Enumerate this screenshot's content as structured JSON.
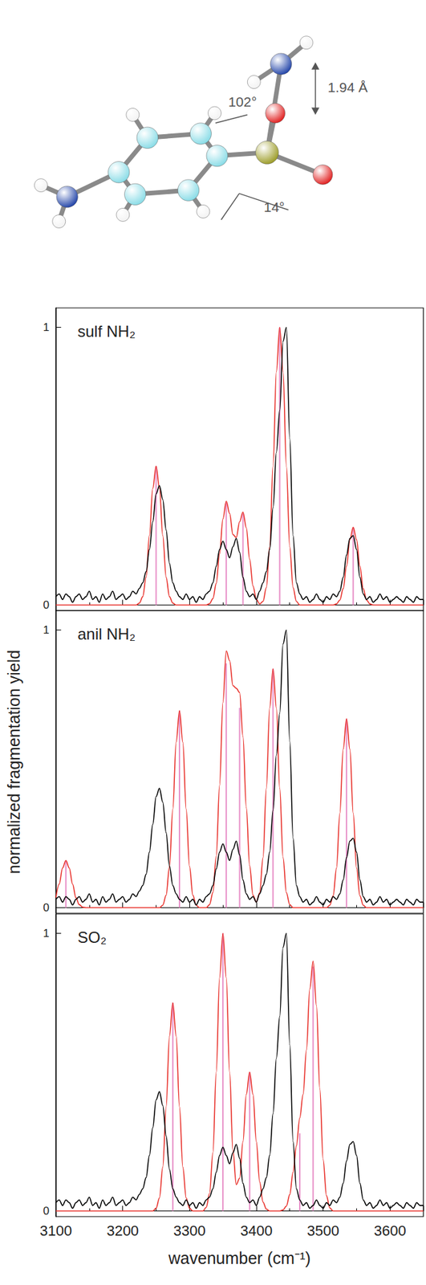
{
  "molecule": {
    "annotations": [
      "102°",
      "14°",
      "1.94 Å"
    ]
  },
  "chart_data": [
    {
      "type": "line",
      "title": "sulf NH₂",
      "x": [
        3100,
        3105,
        3110,
        3115,
        3120,
        3125,
        3130,
        3135,
        3140,
        3145,
        3150,
        3155,
        3160,
        3165,
        3170,
        3175,
        3180,
        3185,
        3190,
        3195,
        3200,
        3205,
        3210,
        3215,
        3220,
        3225,
        3230,
        3235,
        3240,
        3245,
        3250,
        3255,
        3260,
        3265,
        3270,
        3275,
        3280,
        3285,
        3290,
        3295,
        3300,
        3305,
        3310,
        3315,
        3320,
        3325,
        3330,
        3335,
        3340,
        3345,
        3350,
        3355,
        3360,
        3365,
        3370,
        3375,
        3380,
        3385,
        3390,
        3395,
        3400,
        3405,
        3410,
        3415,
        3420,
        3425,
        3430,
        3435,
        3440,
        3445,
        3450,
        3455,
        3460,
        3465,
        3470,
        3475,
        3480,
        3485,
        3490,
        3495,
        3500,
        3505,
        3510,
        3515,
        3520,
        3525,
        3530,
        3535,
        3540,
        3545,
        3550,
        3555,
        3560,
        3565,
        3570,
        3575,
        3580,
        3585,
        3590,
        3595,
        3600,
        3605,
        3610,
        3615,
        3620,
        3625,
        3630,
        3635,
        3640,
        3645,
        3650
      ],
      "xlim": [
        3100,
        3650
      ],
      "xticks": [
        3100,
        3200,
        3300,
        3400,
        3500,
        3600
      ],
      "ylim": [
        -0.02,
        1.07
      ],
      "yticks": [
        0,
        1
      ],
      "tick_labels": "y",
      "series": [
        {
          "type": "bar",
          "color": "#e890c8",
          "x": [
            3250,
            3355,
            3380,
            3435,
            3545
          ],
          "values": [
            0.5,
            0.37,
            0.33,
            1.0,
            0.28
          ]
        },
        {
          "type": "line",
          "color": "#e8302a",
          "values": [
            0,
            0,
            0,
            0,
            0,
            0,
            0,
            0,
            0,
            0,
            0,
            0,
            0,
            0,
            0,
            0,
            0,
            0,
            0,
            0,
            0,
            0,
            0,
            0,
            0,
            0.007,
            0.03,
            0.1,
            0.25,
            0.42,
            0.5,
            0.42,
            0.25,
            0.1,
            0.03,
            0.007,
            0,
            0,
            0,
            0,
            0,
            0,
            0,
            0,
            0,
            0,
            0.005,
            0.023,
            0.078,
            0.185,
            0.31,
            0.374,
            0.33,
            0.254,
            0.243,
            0.3,
            0.335,
            0.278,
            0.165,
            0.069,
            0.021,
            0.004,
            0.013,
            0.063,
            0.21,
            0.5,
            0.84,
            1.0,
            0.84,
            0.5,
            0.21,
            0.063,
            0.013,
            0,
            0,
            0,
            0,
            0,
            0,
            0,
            0,
            0,
            0,
            0,
            0.004,
            0.018,
            0.059,
            0.14,
            0.235,
            0.28,
            0.235,
            0.14,
            0.059,
            0.018,
            0.004,
            0,
            0,
            0,
            0,
            0,
            0,
            0,
            0,
            0,
            0,
            0,
            0,
            0,
            0,
            0,
            0
          ]
        },
        {
          "type": "line",
          "color": "#000000",
          "values": [
            0.03,
            0.04,
            0.02,
            0.04,
            0.03,
            0.01,
            0.03,
            0.04,
            0.02,
            0.03,
            0.05,
            0.02,
            0.03,
            0.01,
            0.04,
            0.02,
            0.03,
            0.05,
            0.02,
            0.03,
            0.04,
            0.02,
            0.03,
            0.05,
            0.04,
            0.06,
            0.08,
            0.12,
            0.2,
            0.3,
            0.4,
            0.43,
            0.38,
            0.27,
            0.15,
            0.08,
            0.05,
            0.03,
            0.02,
            0.04,
            0.02,
            0.03,
            0.01,
            0.03,
            0.02,
            0.04,
            0.05,
            0.08,
            0.14,
            0.2,
            0.23,
            0.2,
            0.17,
            0.21,
            0.24,
            0.19,
            0.1,
            0.05,
            0.03,
            0.04,
            0.02,
            0.05,
            0.08,
            0.12,
            0.2,
            0.35,
            0.55,
            0.7,
            0.95,
            1.0,
            0.6,
            0.25,
            0.08,
            0.04,
            0.02,
            0.03,
            0.01,
            0.02,
            0.04,
            0.02,
            0.01,
            0.03,
            0.02,
            0.04,
            0.03,
            0.05,
            0.1,
            0.18,
            0.24,
            0.25,
            0.2,
            0.1,
            0.04,
            0.02,
            0.03,
            0.01,
            0.02,
            0.04,
            0.02,
            0.03,
            0.01,
            0.02,
            0.03,
            0.02,
            0.01,
            0.03,
            0.02,
            0.01,
            0.03,
            0.02,
            0.02
          ]
        }
      ]
    },
    {
      "type": "line",
      "title": "anil NH₂",
      "ylabel": "normalized fragmentation yield",
      "x": [
        3100,
        3105,
        3110,
        3115,
        3120,
        3125,
        3130,
        3135,
        3140,
        3145,
        3150,
        3155,
        3160,
        3165,
        3170,
        3175,
        3180,
        3185,
        3190,
        3195,
        3200,
        3205,
        3210,
        3215,
        3220,
        3225,
        3230,
        3235,
        3240,
        3245,
        3250,
        3255,
        3260,
        3265,
        3270,
        3275,
        3280,
        3285,
        3290,
        3295,
        3300,
        3305,
        3310,
        3315,
        3320,
        3325,
        3330,
        3335,
        3340,
        3345,
        3350,
        3355,
        3360,
        3365,
        3370,
        3375,
        3380,
        3385,
        3390,
        3395,
        3400,
        3405,
        3410,
        3415,
        3420,
        3425,
        3430,
        3435,
        3440,
        3445,
        3450,
        3455,
        3460,
        3465,
        3470,
        3475,
        3480,
        3485,
        3490,
        3495,
        3500,
        3505,
        3510,
        3515,
        3520,
        3525,
        3530,
        3535,
        3540,
        3545,
        3550,
        3555,
        3560,
        3565,
        3570,
        3575,
        3580,
        3585,
        3590,
        3595,
        3600,
        3605,
        3610,
        3615,
        3620,
        3625,
        3630,
        3635,
        3640,
        3645,
        3650
      ],
      "xlim": [
        3100,
        3650
      ],
      "xticks": [
        3100,
        3200,
        3300,
        3400,
        3500,
        3600
      ],
      "ylim": [
        -0.02,
        1.07
      ],
      "yticks": [
        0,
        1
      ],
      "tick_labels": "y",
      "series": [
        {
          "type": "bar",
          "color": "#e890c8",
          "x": [
            3115,
            3285,
            3355,
            3375,
            3425,
            3535
          ],
          "values": [
            0.17,
            0.71,
            0.88,
            0.72,
            0.86,
            0.68
          ]
        },
        {
          "type": "line",
          "color": "#e8302a",
          "values": [
            0.036,
            0.085,
            0.143,
            0.17,
            0.143,
            0.085,
            0.036,
            0.011,
            0.002,
            0,
            0,
            0,
            0,
            0,
            0,
            0,
            0,
            0,
            0,
            0,
            0,
            0,
            0,
            0,
            0,
            0,
            0,
            0,
            0,
            0,
            0,
            0,
            0.009,
            0.045,
            0.149,
            0.355,
            0.596,
            0.71,
            0.596,
            0.355,
            0.149,
            0.045,
            0.009,
            0,
            0,
            0,
            0.011,
            0.055,
            0.185,
            0.44,
            0.739,
            0.925,
            0.89,
            0.8,
            0.79,
            0.775,
            0.616,
            0.36,
            0.151,
            0.045,
            0.02,
            0.054,
            0.18,
            0.43,
            0.72,
            0.86,
            0.72,
            0.43,
            0.18,
            0.054,
            0.011,
            0,
            0,
            0,
            0,
            0,
            0,
            0,
            0,
            0,
            0,
            0,
            0.009,
            0.043,
            0.143,
            0.34,
            0.571,
            0.68,
            0.571,
            0.34,
            0.143,
            0.043,
            0.009,
            0,
            0,
            0,
            0,
            0,
            0,
            0,
            0,
            0,
            0,
            0,
            0,
            0,
            0,
            0,
            0,
            0,
            0
          ]
        },
        {
          "type": "line",
          "color": "#000000",
          "values": [
            0.03,
            0.04,
            0.02,
            0.04,
            0.03,
            0.01,
            0.03,
            0.04,
            0.02,
            0.03,
            0.05,
            0.02,
            0.03,
            0.01,
            0.04,
            0.02,
            0.03,
            0.05,
            0.02,
            0.03,
            0.04,
            0.02,
            0.03,
            0.05,
            0.04,
            0.06,
            0.08,
            0.12,
            0.2,
            0.3,
            0.4,
            0.43,
            0.38,
            0.27,
            0.15,
            0.08,
            0.05,
            0.03,
            0.02,
            0.04,
            0.02,
            0.03,
            0.01,
            0.03,
            0.02,
            0.04,
            0.05,
            0.08,
            0.14,
            0.2,
            0.23,
            0.2,
            0.17,
            0.21,
            0.24,
            0.19,
            0.1,
            0.05,
            0.03,
            0.04,
            0.02,
            0.05,
            0.08,
            0.12,
            0.2,
            0.35,
            0.55,
            0.7,
            0.95,
            1.0,
            0.6,
            0.25,
            0.08,
            0.04,
            0.02,
            0.03,
            0.01,
            0.02,
            0.04,
            0.02,
            0.01,
            0.03,
            0.02,
            0.04,
            0.03,
            0.05,
            0.1,
            0.18,
            0.24,
            0.25,
            0.2,
            0.1,
            0.04,
            0.02,
            0.03,
            0.01,
            0.02,
            0.04,
            0.02,
            0.03,
            0.01,
            0.02,
            0.03,
            0.02,
            0.01,
            0.03,
            0.02,
            0.01,
            0.03,
            0.02,
            0.02
          ]
        }
      ]
    },
    {
      "type": "line",
      "title": "SO₂",
      "xlabel": "wavenumber (cm⁻¹)",
      "x": [
        3100,
        3105,
        3110,
        3115,
        3120,
        3125,
        3130,
        3135,
        3140,
        3145,
        3150,
        3155,
        3160,
        3165,
        3170,
        3175,
        3180,
        3185,
        3190,
        3195,
        3200,
        3205,
        3210,
        3215,
        3220,
        3225,
        3230,
        3235,
        3240,
        3245,
        3250,
        3255,
        3260,
        3265,
        3270,
        3275,
        3280,
        3285,
        3290,
        3295,
        3300,
        3305,
        3310,
        3315,
        3320,
        3325,
        3330,
        3335,
        3340,
        3345,
        3350,
        3355,
        3360,
        3365,
        3370,
        3375,
        3380,
        3385,
        3390,
        3395,
        3400,
        3405,
        3410,
        3415,
        3420,
        3425,
        3430,
        3435,
        3440,
        3445,
        3450,
        3455,
        3460,
        3465,
        3470,
        3475,
        3480,
        3485,
        3490,
        3495,
        3500,
        3505,
        3510,
        3515,
        3520,
        3525,
        3530,
        3535,
        3540,
        3545,
        3550,
        3555,
        3560,
        3565,
        3570,
        3575,
        3580,
        3585,
        3590,
        3595,
        3600,
        3605,
        3610,
        3615,
        3620,
        3625,
        3630,
        3635,
        3640,
        3645,
        3650
      ],
      "xlim": [
        3100,
        3650
      ],
      "xticks": [
        3100,
        3200,
        3300,
        3400,
        3500,
        3600
      ],
      "ylim": [
        -0.02,
        1.07
      ],
      "yticks": [
        0,
        1
      ],
      "tick_labels": true,
      "series": [
        {
          "type": "bar",
          "color": "#e890c8",
          "x": [
            3275,
            3350,
            3390,
            3465,
            3485
          ],
          "values": [
            0.75,
            1.0,
            0.5,
            0.28,
            0.88
          ]
        },
        {
          "type": "line",
          "color": "#e8302a",
          "values": [
            0,
            0,
            0,
            0,
            0,
            0,
            0,
            0,
            0,
            0,
            0,
            0,
            0,
            0,
            0,
            0,
            0,
            0,
            0,
            0,
            0,
            0,
            0,
            0,
            0,
            0,
            0,
            0,
            0,
            0,
            0.01,
            0.047,
            0.158,
            0.375,
            0.63,
            0.75,
            0.63,
            0.375,
            0.158,
            0.047,
            0.01,
            0,
            0,
            0,
            0,
            0.013,
            0.063,
            0.21,
            0.5,
            0.84,
            1.0,
            0.84,
            0.5,
            0.217,
            0.095,
            0.118,
            0.25,
            0.42,
            0.5,
            0.42,
            0.25,
            0.105,
            0.032,
            0.007,
            0,
            0,
            0,
            0,
            0.004,
            0.018,
            0.059,
            0.14,
            0.235,
            0.335,
            0.42,
            0.58,
            0.8,
            0.9,
            0.74,
            0.44,
            0.185,
            0.055,
            0.011,
            0,
            0,
            0,
            0,
            0,
            0,
            0,
            0,
            0,
            0,
            0,
            0,
            0,
            0,
            0,
            0,
            0,
            0,
            0,
            0,
            0,
            0,
            0,
            0,
            0,
            0,
            0,
            0
          ]
        },
        {
          "type": "line",
          "color": "#000000",
          "values": [
            0.03,
            0.04,
            0.02,
            0.04,
            0.03,
            0.01,
            0.03,
            0.04,
            0.02,
            0.03,
            0.05,
            0.02,
            0.03,
            0.01,
            0.04,
            0.02,
            0.03,
            0.05,
            0.02,
            0.03,
            0.04,
            0.02,
            0.03,
            0.05,
            0.04,
            0.06,
            0.08,
            0.12,
            0.2,
            0.3,
            0.4,
            0.43,
            0.38,
            0.27,
            0.15,
            0.08,
            0.05,
            0.03,
            0.02,
            0.04,
            0.02,
            0.03,
            0.01,
            0.03,
            0.02,
            0.04,
            0.05,
            0.08,
            0.14,
            0.2,
            0.23,
            0.2,
            0.17,
            0.21,
            0.24,
            0.19,
            0.1,
            0.05,
            0.03,
            0.04,
            0.02,
            0.05,
            0.08,
            0.12,
            0.2,
            0.35,
            0.55,
            0.7,
            0.95,
            1.0,
            0.6,
            0.25,
            0.08,
            0.04,
            0.02,
            0.03,
            0.01,
            0.02,
            0.04,
            0.02,
            0.01,
            0.03,
            0.02,
            0.04,
            0.03,
            0.05,
            0.1,
            0.18,
            0.24,
            0.25,
            0.2,
            0.1,
            0.04,
            0.02,
            0.03,
            0.01,
            0.02,
            0.04,
            0.02,
            0.03,
            0.01,
            0.02,
            0.03,
            0.02,
            0.01,
            0.03,
            0.02,
            0.01,
            0.03,
            0.02,
            0.02
          ]
        }
      ]
    }
  ]
}
